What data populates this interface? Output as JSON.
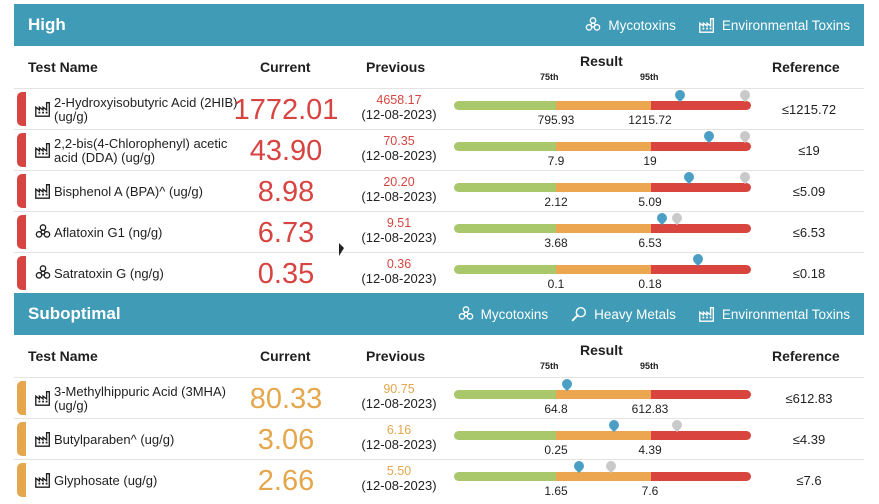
{
  "colors": {
    "header_bg": "#3f9bb6",
    "high": "#d64541",
    "suboptimal": "#e5a74d",
    "gauge_green": "#a9c86c",
    "gauge_orange": "#eba64f",
    "gauge_red": "#d9443f",
    "pin_current": "#4c9fc4",
    "pin_previous": "#c9c9c9"
  },
  "columns": {
    "name": "Test Name",
    "current": "Current",
    "previous": "Previous",
    "result": "Result",
    "p75": "75th",
    "p95": "95th",
    "reference": "Reference"
  },
  "sections": [
    {
      "title": "High",
      "status_color": "#d64541",
      "categories": [
        {
          "label": "Mycotoxins",
          "icon": "biohazard-icon"
        },
        {
          "label": "Environmental Toxins",
          "icon": "factory-icon"
        }
      ],
      "rows": [
        {
          "name": "2-Hydroxyisobutyric Acid (2HIB) (ug/g)",
          "icon": "factory-icon",
          "current": "1772.01",
          "previous": "4658.17",
          "previous_date": "(12-08-2023)",
          "p75": "795.93",
          "p95": "1215.72",
          "reference": "≤1215.72",
          "cur_pos": 0.76,
          "prev_pos": 0.98
        },
        {
          "name": "2,2-bis(4-Chlorophenyl) acetic acid (DDA) (ug/g)",
          "icon": "factory-icon",
          "current": "43.90",
          "previous": "70.35",
          "previous_date": "(12-08-2023)",
          "p75": "7.9",
          "p95": "19",
          "reference": "≤19",
          "cur_pos": 0.86,
          "prev_pos": 0.98
        },
        {
          "name": "Bisphenol A (BPA)^ (ug/g)",
          "icon": "factory-icon",
          "current": "8.98",
          "previous": "20.20",
          "previous_date": "(12-08-2023)",
          "p75": "2.12",
          "p95": "5.09",
          "reference": "≤5.09",
          "cur_pos": 0.79,
          "prev_pos": 0.98
        },
        {
          "name": "Aflatoxin G1 (ng/g)",
          "icon": "biohazard-icon",
          "current": "6.73",
          "previous": "9.51",
          "previous_date": "(12-08-2023)",
          "p75": "3.68",
          "p95": "6.53",
          "reference": "≤6.53",
          "cur_pos": 0.7,
          "prev_pos": 0.75
        },
        {
          "name": "Satratoxin G (ng/g)",
          "icon": "biohazard-icon",
          "current": "0.35",
          "previous": "0.36",
          "previous_date": "(12-08-2023)",
          "p75": "0.1",
          "p95": "0.18",
          "reference": "≤0.18",
          "cur_pos": 0.82,
          "prev_pos": null
        }
      ]
    },
    {
      "title": "Suboptimal",
      "status_color": "#e5a74d",
      "categories": [
        {
          "label": "Mycotoxins",
          "icon": "biohazard-icon"
        },
        {
          "label": "Heavy Metals",
          "icon": "magnifier-icon"
        },
        {
          "label": "Environmental Toxins",
          "icon": "factory-icon"
        }
      ],
      "rows": [
        {
          "name": "3-Methylhippuric Acid (3MHA) (ug/g)",
          "icon": "factory-icon",
          "current": "80.33",
          "previous": "90.75",
          "previous_date": "(12-08-2023)",
          "p75": "64.8",
          "p95": "612.83",
          "reference": "≤612.83",
          "cur_pos": 0.38,
          "prev_pos": null
        },
        {
          "name": "Butylparaben^ (ug/g)",
          "icon": "factory-icon",
          "current": "3.06",
          "previous": "6.16",
          "previous_date": "(12-08-2023)",
          "p75": "0.25",
          "p95": "4.39",
          "reference": "≤4.39",
          "cur_pos": 0.54,
          "prev_pos": 0.75
        },
        {
          "name": "Glyphosate (ug/g)",
          "icon": "factory-icon",
          "current": "2.66",
          "previous": "5.50",
          "previous_date": "(12-08-2023)",
          "p75": "1.65",
          "p95": "7.6",
          "reference": "≤7.6",
          "cur_pos": 0.42,
          "prev_pos": 0.53
        }
      ]
    }
  ]
}
